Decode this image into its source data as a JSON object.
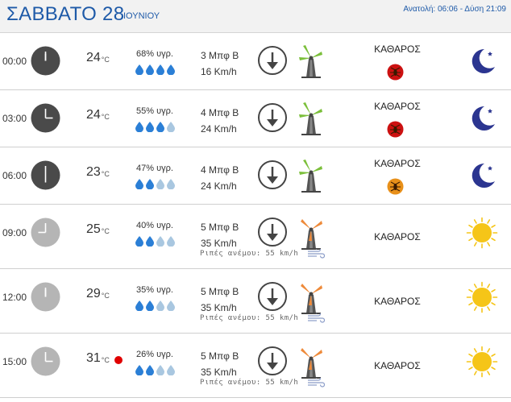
{
  "header": {
    "day_label": "ΣΑΒΒΑΤΟ 28",
    "month_label": "ΙΟΥΝΙΟΥ",
    "sun_info": "Ανατολή: 06:06  - Δύση 21:09"
  },
  "colors": {
    "accent": "#1e5aa8",
    "drop_active": "#2b7fd6",
    "drop_inactive": "#a9c7e0",
    "mill_green": "#7bbf3a",
    "mill_orange": "#ee8a3a",
    "sun": "#f5c518",
    "moon": "#2b3590"
  },
  "rows": [
    {
      "time": "00:00",
      "clock_theme": "dark",
      "temp": "24",
      "temp_unit": "°C",
      "humidity": "68% υγρ.",
      "drops_active": 4,
      "wind_bf": "3 Μπφ Β",
      "wind_kmh": "16 Km/h",
      "gust": "",
      "mill_icon": "windmill-green-icon",
      "sky": "ΚΑΘΑΡΟΣ",
      "uv_color": "#cc1111",
      "weather_icon": "moon-icon"
    },
    {
      "time": "03:00",
      "clock_theme": "dark",
      "temp": "24",
      "temp_unit": "°C",
      "humidity": "55% υγρ.",
      "drops_active": 3,
      "wind_bf": "4 Μπφ Β",
      "wind_kmh": "24 Km/h",
      "gust": "",
      "mill_icon": "windmill-green-icon",
      "sky": "ΚΑΘΑΡΟΣ",
      "uv_color": "#cc1111",
      "weather_icon": "moon-icon"
    },
    {
      "time": "06:00",
      "clock_theme": "dark",
      "temp": "23",
      "temp_unit": "°C",
      "humidity": "47% υγρ.",
      "drops_active": 2,
      "wind_bf": "4 Μπφ Β",
      "wind_kmh": "24 Km/h",
      "gust": "",
      "mill_icon": "windmill-green-icon",
      "sky": "ΚΑΘΑΡΟΣ",
      "uv_color": "#e8901a",
      "weather_icon": "moon-icon"
    },
    {
      "time": "09:00",
      "clock_theme": "light",
      "temp": "25",
      "temp_unit": "°C",
      "humidity": "40% υγρ.",
      "drops_active": 2,
      "wind_bf": "5 Μπφ Β",
      "wind_kmh": "35 Km/h",
      "gust": "Ριπές ανέμου: 55 km/h",
      "mill_icon": "windmill-orange-icon",
      "sky": "ΚΑΘΑΡΟΣ",
      "uv_color": "",
      "weather_icon": "sun-icon"
    },
    {
      "time": "12:00",
      "clock_theme": "light",
      "temp": "29",
      "temp_unit": "°C",
      "humidity": "35% υγρ.",
      "drops_active": 2,
      "wind_bf": "5 Μπφ Β",
      "wind_kmh": "35 Km/h",
      "gust": "Ριπές ανέμου: 55 km/h",
      "mill_icon": "windmill-orange-icon",
      "sky": "ΚΑΘΑΡΟΣ",
      "uv_color": "",
      "weather_icon": "sun-icon"
    },
    {
      "time": "15:00",
      "clock_theme": "light",
      "temp": "31",
      "temp_unit": "°C",
      "humidity": "26% υγρ.",
      "drops_active": 2,
      "wind_bf": "5 Μπφ Β",
      "wind_kmh": "35 Km/h",
      "gust": "Ριπές ανέμου: 55 km/h",
      "mill_icon": "windmill-orange-icon",
      "sky": "ΚΑΘΑΡΟΣ",
      "uv_color": "",
      "weather_icon": "sun-icon",
      "hot_marker": true
    }
  ]
}
